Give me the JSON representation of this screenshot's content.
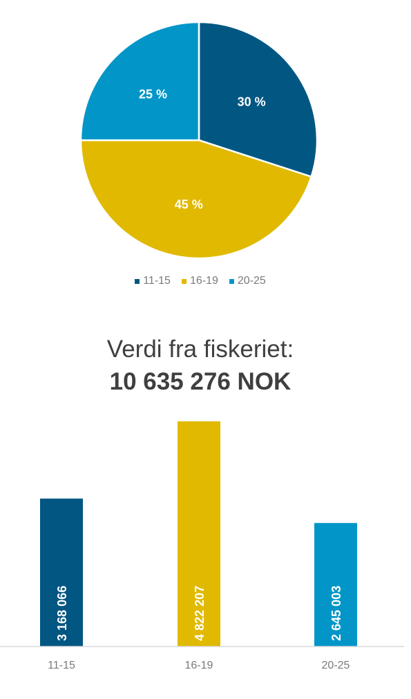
{
  "colors": {
    "c11_15": "#025782",
    "c16_19": "#E0B900",
    "c20_25": "#0296C8"
  },
  "headline": {
    "label": "Verdi fra fiskeriet:",
    "value": "10 635 276 NOK"
  },
  "chart_data": [
    {
      "type": "pie",
      "slices": [
        {
          "label": "11-15",
          "value": 30,
          "display": "30 %",
          "color": "#025782"
        },
        {
          "label": "16-19",
          "value": 45,
          "display": "45 %",
          "color": "#E0B900"
        },
        {
          "label": "20-25",
          "value": 25,
          "display": "25 %",
          "color": "#0296C8"
        }
      ],
      "legend": [
        "11-15",
        "16-19",
        "20-25"
      ],
      "legend_position": "bottom"
    },
    {
      "type": "bar",
      "categories": [
        "11-15",
        "16-19",
        "20-25"
      ],
      "values": [
        3168066,
        4822207,
        2645003
      ],
      "value_labels": [
        "3 168 066",
        "4 822 207",
        "2 645 003"
      ],
      "colors": [
        "#025782",
        "#E0B900",
        "#0296C8"
      ],
      "ylim": [
        0,
        5000000
      ],
      "grid": false
    }
  ]
}
